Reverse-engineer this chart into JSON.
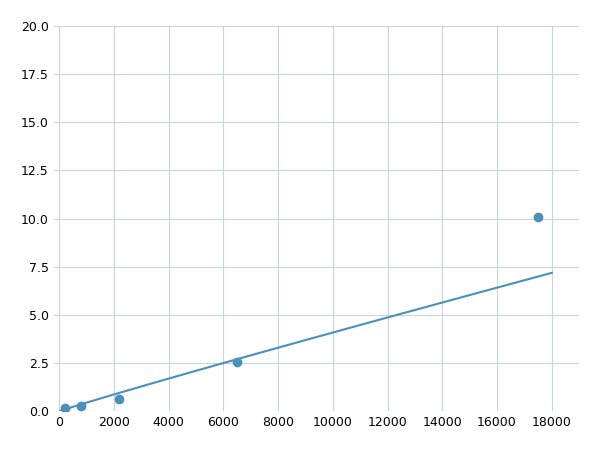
{
  "x": [
    200,
    800,
    2200,
    6500,
    17500
  ],
  "y": [
    0.15,
    0.25,
    0.65,
    2.55,
    10.1
  ],
  "line_color": "#4a90b8",
  "marker_color": "#4a90b8",
  "marker_size": 6,
  "xlim": [
    -200,
    19000
  ],
  "ylim": [
    0,
    20.0
  ],
  "xticks": [
    0,
    2000,
    4000,
    6000,
    8000,
    10000,
    12000,
    14000,
    16000,
    18000
  ],
  "yticks": [
    0.0,
    2.5,
    5.0,
    7.5,
    10.0,
    12.5,
    15.0,
    17.5,
    20.0
  ],
  "grid_color": "#c8d4e0",
  "background_color": "#ffffff",
  "figsize": [
    6.0,
    4.5
  ],
  "dpi": 100,
  "power_a": 0.000385,
  "power_b": 1.38
}
